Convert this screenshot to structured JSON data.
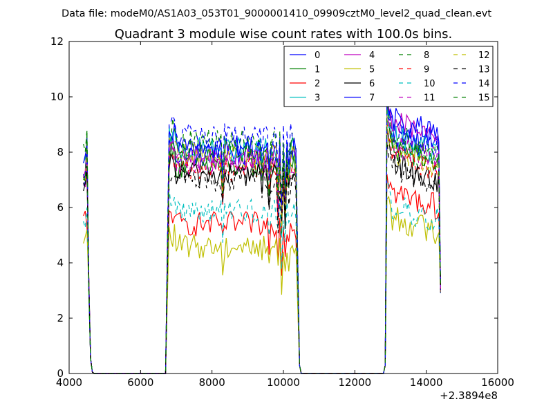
{
  "header": {
    "suptitle": "Data file: modeM0/AS1A03_053T01_9000001410_09909cztM0_level2_quad_clean.evt"
  },
  "chart_data": {
    "type": "line",
    "title": "Quadrant 3 module wise count rates with 100.0s bins.",
    "xlabel": "",
    "ylabel": "",
    "x_offset_label": "+2.3894e8",
    "xlim": [
      4000,
      16000
    ],
    "ylim": [
      0,
      12
    ],
    "xticks": [
      4000,
      6000,
      8000,
      10000,
      12000,
      14000,
      16000
    ],
    "yticks": [
      0,
      2,
      4,
      6,
      8,
      10,
      12
    ],
    "grid": false,
    "legend_position": "top-right",
    "legend_columns": 4,
    "gti_segments": [
      {
        "start": 4400,
        "end": 4650,
        "rise_end": 4600
      },
      {
        "start": 6700,
        "end": 10550,
        "rise_start": 6700,
        "rise_end": 6900,
        "fall_start": 10350,
        "fall_end": 10550
      },
      {
        "start": 12700,
        "end": 14400,
        "rise_start": 12800,
        "rise_end": 12900,
        "fall_start": 14350,
        "fall_end": 14400
      }
    ],
    "series": [
      {
        "name": "0",
        "color": "#0000ff",
        "dash": "solid",
        "level": 7.9,
        "seg1": [
          6.8,
          8.4
        ],
        "seg3": 8.9
      },
      {
        "name": "1",
        "color": "#008000",
        "dash": "solid",
        "level": 7.5,
        "seg1": [
          7.0,
          8.7
        ],
        "seg3": 8.2
      },
      {
        "name": "2",
        "color": "#ff0000",
        "dash": "solid",
        "level": 5.4,
        "seg1": [
          5.7,
          5.3
        ],
        "seg3": 6.6
      },
      {
        "name": "3",
        "color": "#00bfbf",
        "dash": "solid",
        "level": 8.1,
        "seg1": [
          7.6,
          8.1
        ],
        "seg3": 8.6
      },
      {
        "name": "4",
        "color": "#bf00bf",
        "dash": "solid",
        "level": 7.8,
        "seg1": [
          7.1,
          8.3
        ],
        "seg3": 9.1
      },
      {
        "name": "5",
        "color": "#bfbf00",
        "dash": "solid",
        "level": 4.6,
        "seg1": [
          4.7,
          5.2
        ],
        "seg3": 5.7
      },
      {
        "name": "6",
        "color": "#000000",
        "dash": "solid",
        "level": 7.2,
        "seg1": [
          6.6,
          7.2
        ],
        "seg3": 7.6
      },
      {
        "name": "7",
        "color": "#0000ff",
        "dash": "solid",
        "level": 8.2,
        "seg1": [
          7.6,
          8.2
        ],
        "seg3": 9.2
      },
      {
        "name": "8",
        "color": "#008000",
        "dash": "dashed",
        "level": 8.4,
        "seg1": [
          8.3,
          8.8
        ],
        "seg3": 8.3
      },
      {
        "name": "9",
        "color": "#ff0000",
        "dash": "dashed",
        "level": 7.4,
        "seg1": [
          7.2,
          7.6
        ],
        "seg3": 8.0
      },
      {
        "name": "10",
        "color": "#00bfbf",
        "dash": "dashed",
        "level": 5.9,
        "seg1": [
          5.5,
          6.0
        ],
        "seg3": 6.1
      },
      {
        "name": "11",
        "color": "#bf00bf",
        "dash": "dashed",
        "level": 7.6,
        "seg1": [
          6.9,
          7.8
        ],
        "seg3": 8.3
      },
      {
        "name": "12",
        "color": "#bfbf00",
        "dash": "dashed",
        "level": 7.9,
        "seg1": [
          7.1,
          8.3
        ],
        "seg3": 8.1
      },
      {
        "name": "13",
        "color": "#000000",
        "dash": "dashed",
        "level": 7.0,
        "seg1": [
          6.9,
          7.5
        ],
        "seg3": 7.5
      },
      {
        "name": "14",
        "color": "#0000ff",
        "dash": "dashed",
        "level": 8.6,
        "seg1": [
          7.2,
          8.5
        ],
        "seg3": 8.7
      },
      {
        "name": "15",
        "color": "#008000",
        "dash": "dashed",
        "level": 8.0,
        "seg1": [
          7.1,
          8.8
        ],
        "seg3": 8.6
      }
    ]
  }
}
